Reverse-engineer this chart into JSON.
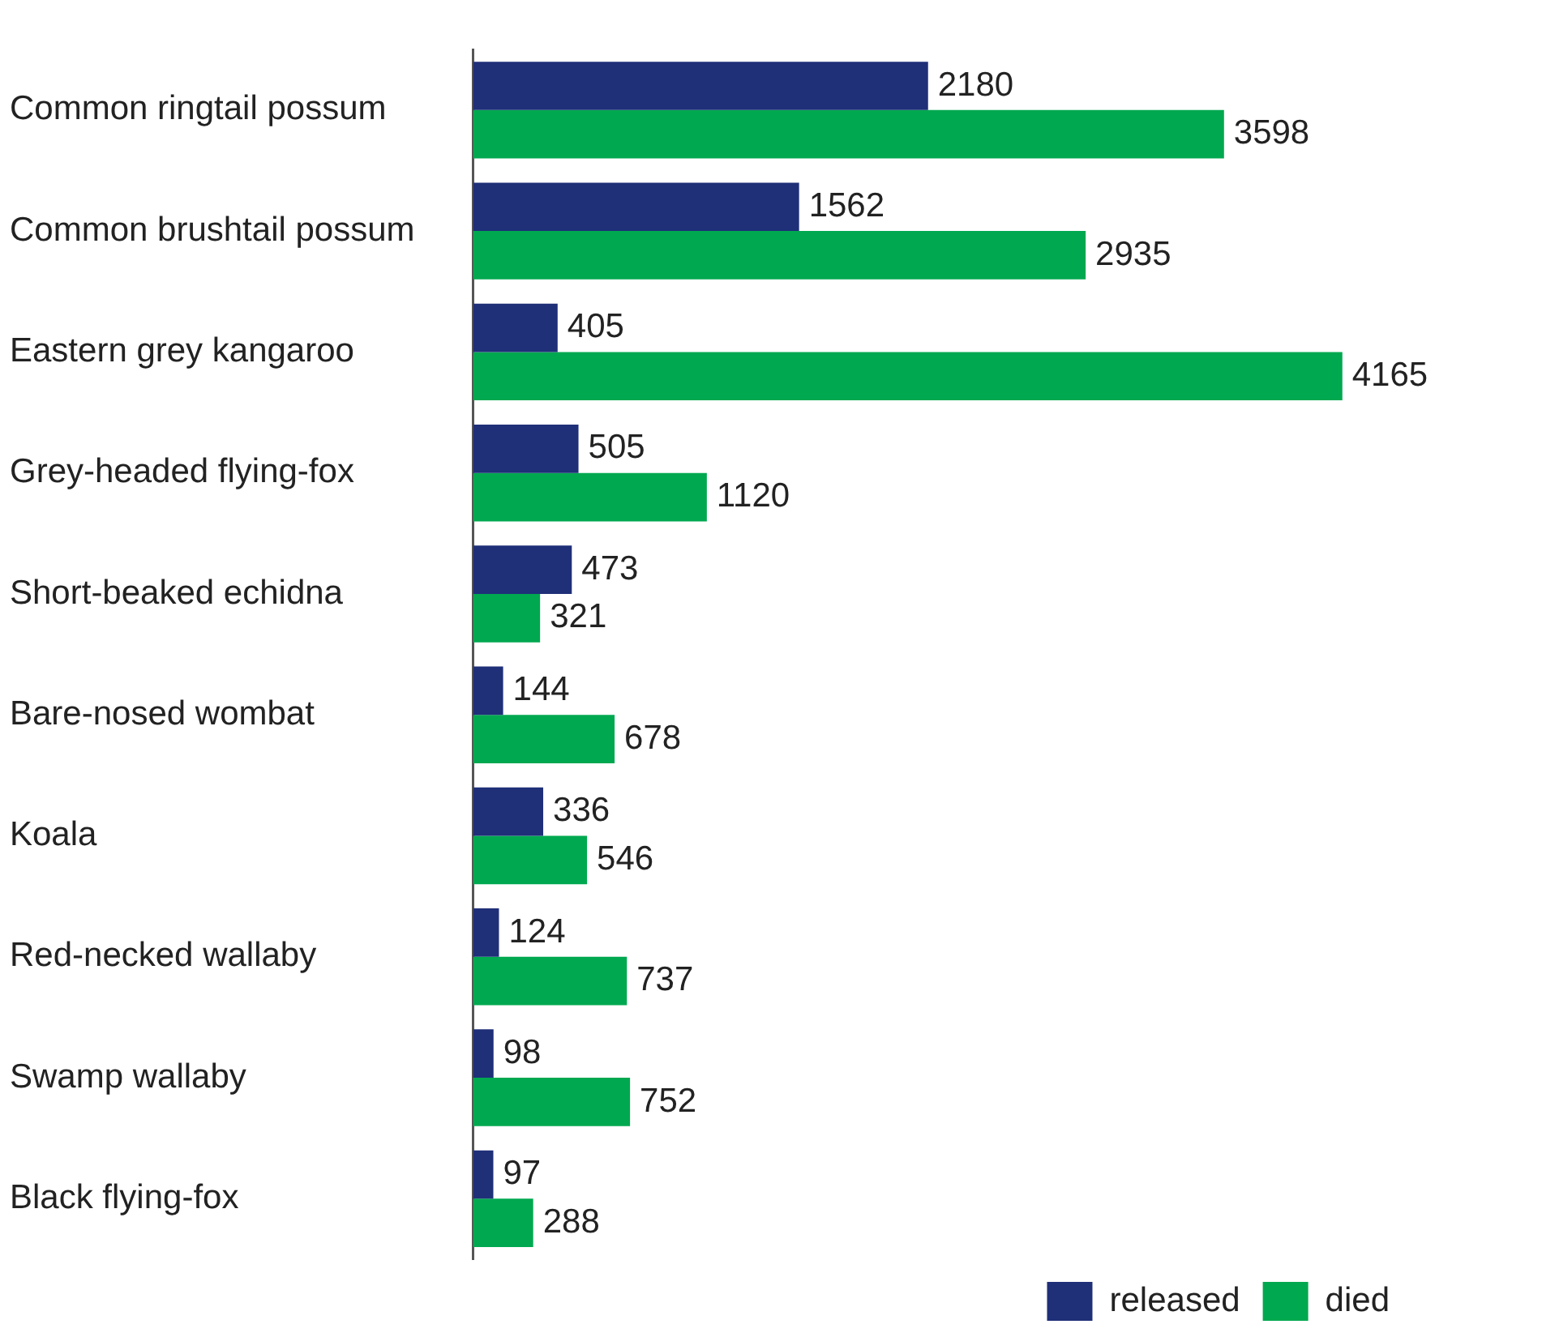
{
  "chart_data": {
    "type": "bar",
    "orientation": "horizontal",
    "categories": [
      "Common ringtail possum",
      "Common brushtail possum",
      "Eastern grey kangaroo",
      "Grey-headed flying-fox",
      "Short-beaked echidna",
      "Bare-nosed wombat",
      "Koala",
      "Red-necked wallaby",
      "Swamp wallaby",
      "Black flying-fox"
    ],
    "series": [
      {
        "name": "released",
        "color": "#1f2f78",
        "values": [
          2180,
          1562,
          405,
          505,
          473,
          144,
          336,
          124,
          98,
          97
        ]
      },
      {
        "name": "died",
        "color": "#00a84f",
        "values": [
          3598,
          2935,
          4165,
          1120,
          321,
          678,
          546,
          737,
          752,
          288
        ]
      }
    ],
    "tick_labels": "y",
    "legend": "bottom right",
    "data_labels": true
  }
}
